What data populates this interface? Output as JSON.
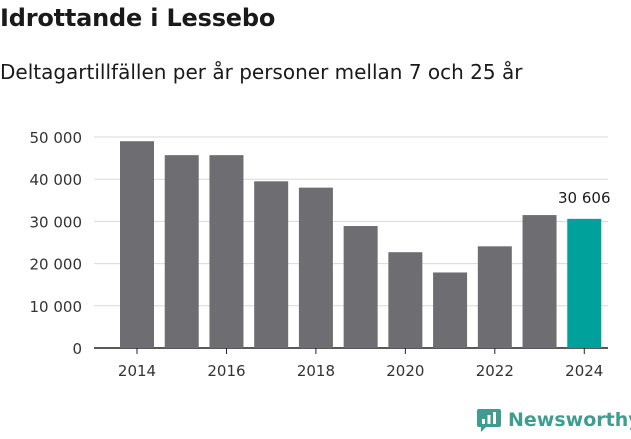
{
  "title": "Idrottande i Lessebo",
  "subtitle": "Deltagartillfällen per år personer mellan 7 och 25 år",
  "brand": {
    "name": "Newsworthy",
    "color": "#3f9d8f"
  },
  "colors": {
    "bar": "#6e6d72",
    "highlight": "#00a19a",
    "grid": "#d9d9d9",
    "axis": "#222222"
  },
  "chart_data": {
    "type": "bar",
    "categories": [
      "2014",
      "2015",
      "2016",
      "2017",
      "2018",
      "2019",
      "2020",
      "2021",
      "2022",
      "2023",
      "2024"
    ],
    "values": [
      49000,
      45700,
      45700,
      39500,
      38000,
      28900,
      22700,
      17900,
      24100,
      31500,
      30606
    ],
    "highlight_index": 10,
    "highlight_label": "30 606",
    "xticks": [
      "2014",
      "2016",
      "2018",
      "2020",
      "2022",
      "2024"
    ],
    "yticks": [
      0,
      10000,
      20000,
      30000,
      40000,
      50000
    ],
    "ytick_labels": [
      "0",
      "10 000",
      "20 000",
      "30 000",
      "40 000",
      "50 000"
    ],
    "ylim": [
      0,
      52000
    ],
    "grid": true
  }
}
